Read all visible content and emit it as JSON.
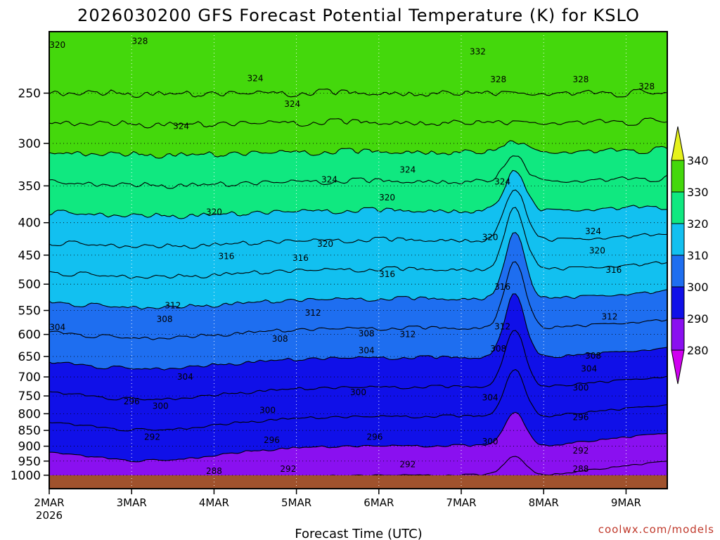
{
  "chart_data": {
    "type": "heatmap",
    "title": "2026030200 GFS Forecast Potential Temperature (K) for KSLO",
    "xlabel": "Forecast Time (UTC)",
    "ylabel": "",
    "credit": "coolwx.com/models",
    "y_axis": {
      "scale": "log",
      "direction": "inverted",
      "range_hPa": [
        1050,
        200
      ],
      "ticks": [
        250,
        300,
        350,
        400,
        450,
        500,
        550,
        600,
        650,
        700,
        750,
        800,
        850,
        900,
        950,
        1000
      ]
    },
    "x_axis": {
      "range_days": [
        0,
        7.5
      ],
      "ticks": [
        "2MAR",
        "3MAR",
        "4MAR",
        "5MAR",
        "6MAR",
        "7MAR",
        "8MAR",
        "9MAR"
      ],
      "first_tick_year": "2026",
      "grid": "dotted"
    },
    "color_scale": {
      "unit": "K",
      "levels": [
        280,
        290,
        300,
        310,
        320,
        330,
        340
      ],
      "colors": [
        "#d000f0",
        "#8a10f0",
        "#1010e8",
        "#1e6ef0",
        "#12c0f0",
        "#10e880",
        "#44d80c",
        "#e6f21c"
      ]
    },
    "contour_interval": 4,
    "contour_labels": [
      {
        "value": "320",
        "x_day": 0.1,
        "p": 210
      },
      {
        "value": "328",
        "x_day": 1.1,
        "p": 207
      },
      {
        "value": "332",
        "x_day": 5.2,
        "p": 215
      },
      {
        "value": "324",
        "x_day": 2.5,
        "p": 237
      },
      {
        "value": "324",
        "x_day": 2.95,
        "p": 260
      },
      {
        "value": "328",
        "x_day": 5.45,
        "p": 238
      },
      {
        "value": "328",
        "x_day": 6.45,
        "p": 238
      },
      {
        "value": "328",
        "x_day": 7.25,
        "p": 244
      },
      {
        "value": "324",
        "x_day": 1.6,
        "p": 282
      },
      {
        "value": "324",
        "x_day": 3.4,
        "p": 342
      },
      {
        "value": "324",
        "x_day": 4.35,
        "p": 330
      },
      {
        "value": "324",
        "x_day": 5.5,
        "p": 345
      },
      {
        "value": "320",
        "x_day": 2.0,
        "p": 385
      },
      {
        "value": "320",
        "x_day": 4.1,
        "p": 365
      },
      {
        "value": "320",
        "x_day": 3.35,
        "p": 432
      },
      {
        "value": "320",
        "x_day": 5.35,
        "p": 422
      },
      {
        "value": "324",
        "x_day": 6.6,
        "p": 413
      },
      {
        "value": "320",
        "x_day": 6.65,
        "p": 443
      },
      {
        "value": "316",
        "x_day": 2.15,
        "p": 452
      },
      {
        "value": "316",
        "x_day": 3.05,
        "p": 455
      },
      {
        "value": "316",
        "x_day": 4.1,
        "p": 482
      },
      {
        "value": "316",
        "x_day": 5.5,
        "p": 505
      },
      {
        "value": "316",
        "x_day": 6.85,
        "p": 475
      },
      {
        "value": "312",
        "x_day": 1.5,
        "p": 540
      },
      {
        "value": "308",
        "x_day": 1.4,
        "p": 568
      },
      {
        "value": "312",
        "x_day": 3.2,
        "p": 555
      },
      {
        "value": "312",
        "x_day": 6.8,
        "p": 563
      },
      {
        "value": "312",
        "x_day": 5.5,
        "p": 583
      },
      {
        "value": "304",
        "x_day": 0.1,
        "p": 585
      },
      {
        "value": "308",
        "x_day": 2.8,
        "p": 610
      },
      {
        "value": "308",
        "x_day": 3.85,
        "p": 598
      },
      {
        "value": "312",
        "x_day": 4.35,
        "p": 600
      },
      {
        "value": "308",
        "x_day": 5.45,
        "p": 632
      },
      {
        "value": "304",
        "x_day": 3.85,
        "p": 636
      },
      {
        "value": "308",
        "x_day": 6.6,
        "p": 648
      },
      {
        "value": "304",
        "x_day": 1.65,
        "p": 700
      },
      {
        "value": "304",
        "x_day": 6.55,
        "p": 680
      },
      {
        "value": "300",
        "x_day": 3.75,
        "p": 740
      },
      {
        "value": "300",
        "x_day": 6.45,
        "p": 728
      },
      {
        "value": "304",
        "x_day": 5.35,
        "p": 755
      },
      {
        "value": "296",
        "x_day": 1.0,
        "p": 765
      },
      {
        "value": "300",
        "x_day": 1.35,
        "p": 778
      },
      {
        "value": "300",
        "x_day": 2.65,
        "p": 790
      },
      {
        "value": "296",
        "x_day": 6.45,
        "p": 810
      },
      {
        "value": "292",
        "x_day": 1.25,
        "p": 870
      },
      {
        "value": "296",
        "x_day": 2.7,
        "p": 880
      },
      {
        "value": "296",
        "x_day": 3.95,
        "p": 870
      },
      {
        "value": "300",
        "x_day": 5.35,
        "p": 885
      },
      {
        "value": "292",
        "x_day": 6.45,
        "p": 915
      },
      {
        "value": "288",
        "x_day": 2.0,
        "p": 985
      },
      {
        "value": "292",
        "x_day": 2.9,
        "p": 978
      },
      {
        "value": "292",
        "x_day": 4.35,
        "p": 962
      },
      {
        "value": "288",
        "x_day": 6.45,
        "p": 978
      }
    ]
  }
}
